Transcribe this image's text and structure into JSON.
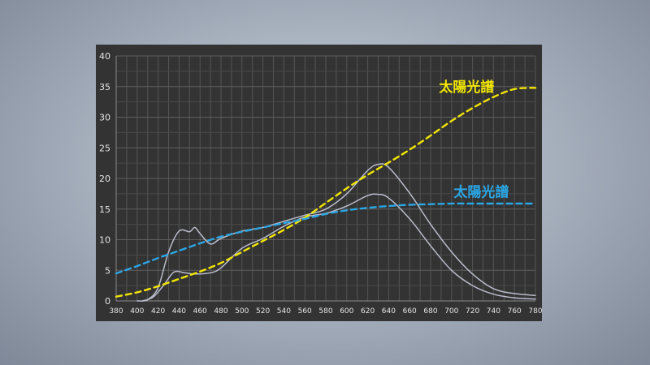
{
  "chart_data": {
    "type": "line",
    "xlim": [
      380,
      780
    ],
    "ylim": [
      0,
      40
    ],
    "x_ticks": [
      "380",
      "400",
      "420",
      "440",
      "460",
      "480",
      "500",
      "520",
      "540",
      "560",
      "580",
      "600",
      "620",
      "640",
      "660",
      "680",
      "700",
      "720",
      "740",
      "760",
      "780"
    ],
    "y_ticks": [
      "0",
      "5",
      "10",
      "15",
      "20",
      "25",
      "30",
      "35",
      "40"
    ],
    "grid": true,
    "series": [
      {
        "name": "太陽光譜",
        "style": "dashed",
        "color": "#f2e600",
        "label_position": "upper-right",
        "x": [
          380,
          400,
          420,
          440,
          460,
          480,
          500,
          520,
          540,
          560,
          580,
          600,
          620,
          640,
          660,
          680,
          700,
          720,
          740,
          760,
          780
        ],
        "y": [
          0.7,
          1.4,
          2.4,
          3.6,
          4.8,
          6.2,
          8.0,
          9.8,
          11.6,
          13.6,
          16.0,
          18.4,
          20.6,
          22.6,
          24.7,
          27.0,
          29.4,
          31.5,
          33.3,
          34.6,
          34.8
        ]
      },
      {
        "name": "太陽光譜",
        "style": "dashed",
        "color": "#2aa7e6",
        "label_position": "right",
        "x": [
          380,
          400,
          420,
          440,
          460,
          480,
          500,
          520,
          540,
          560,
          580,
          600,
          620,
          640,
          660,
          680,
          700,
          720,
          740,
          760,
          780
        ],
        "y": [
          4.5,
          5.7,
          7.0,
          8.2,
          9.4,
          10.5,
          11.3,
          12.0,
          12.7,
          13.4,
          14.2,
          14.8,
          15.2,
          15.5,
          15.7,
          15.8,
          15.9,
          15.9,
          15.9,
          15.9,
          15.9
        ]
      },
      {
        "name": "",
        "style": "solid",
        "color": "#b9bccb",
        "x": [
          400,
          410,
          420,
          430,
          440,
          450,
          455,
          460,
          470,
          480,
          500,
          520,
          540,
          560,
          580,
          600,
          620,
          630,
          640,
          660,
          680,
          700,
          720,
          740,
          760,
          780
        ],
        "y": [
          0.0,
          0.2,
          2.2,
          8.0,
          11.4,
          11.3,
          12.0,
          11.0,
          9.3,
          10.2,
          11.4,
          12.0,
          13.0,
          14.0,
          15.0,
          17.5,
          21.3,
          22.3,
          21.8,
          17.6,
          12.5,
          8.0,
          4.4,
          2.0,
          1.2,
          0.9
        ]
      },
      {
        "name": "",
        "style": "solid",
        "color": "#b9bccb",
        "x": [
          405,
          415,
          425,
          435,
          445,
          455,
          470,
          480,
          500,
          520,
          540,
          560,
          580,
          600,
          620,
          630,
          640,
          660,
          680,
          700,
          720,
          740,
          760,
          780
        ],
        "y": [
          0.0,
          0.6,
          2.5,
          4.7,
          4.6,
          4.4,
          4.6,
          5.4,
          8.6,
          10.2,
          12.2,
          13.7,
          14.3,
          15.5,
          17.2,
          17.4,
          16.8,
          13.4,
          9.0,
          5.0,
          2.5,
          1.1,
          0.5,
          0.3
        ]
      }
    ]
  }
}
